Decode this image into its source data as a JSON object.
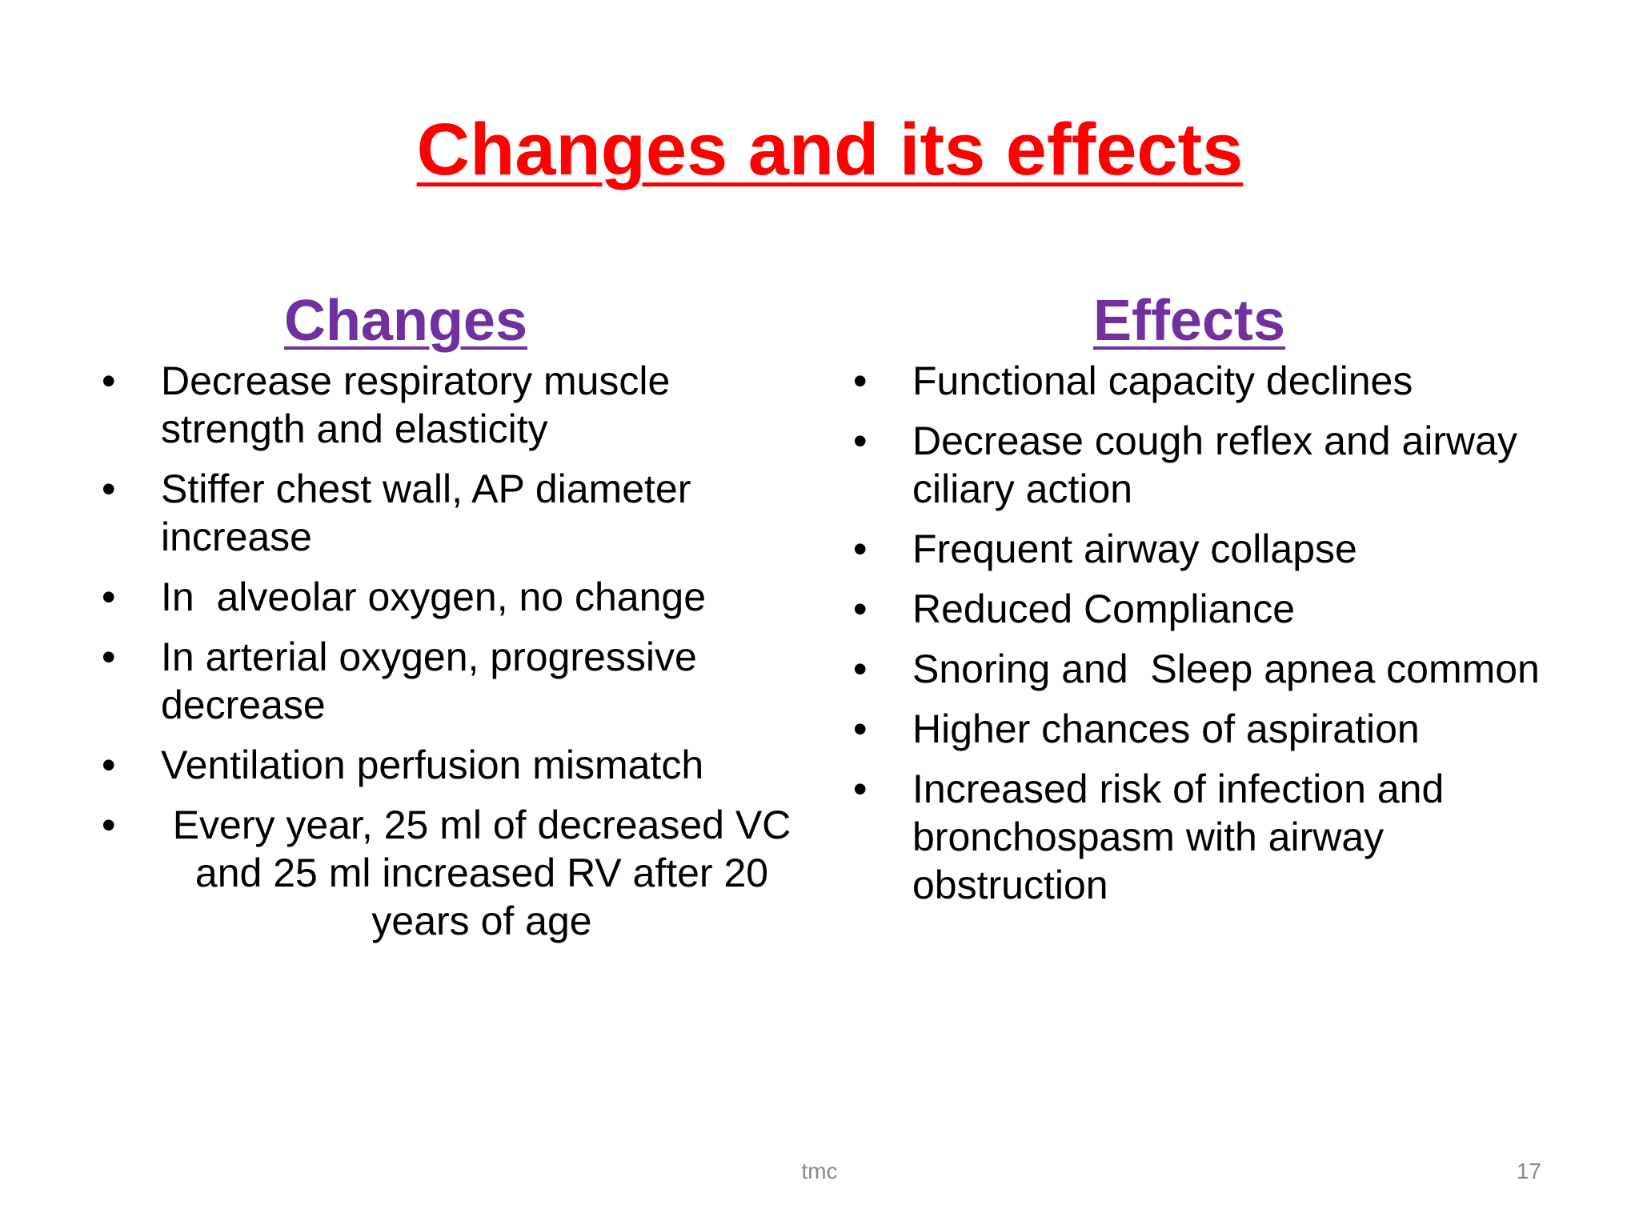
{
  "title": "Changes and its effects",
  "columns": [
    {
      "heading": "Changes",
      "items": [
        "Decrease respiratory muscle strength and elasticity",
        "Stiffer chest wall, AP diameter increase",
        "In  alveolar oxygen, no change",
        "In arterial oxygen, progressive decrease",
        "Ventilation perfusion mismatch",
        "Every year, 25 ml of decreased VC and 25 ml increased RV after 20 years of age"
      ]
    },
    {
      "heading": "Effects",
      "items": [
        "Functional capacity declines",
        "Decrease cough reflex and airway ciliary action",
        "Frequent airway collapse",
        "Reduced Compliance",
        "Snoring and  Sleep apnea common",
        "Higher chances of aspiration",
        "Increased risk of infection and bronchospasm with airway obstruction"
      ]
    }
  ],
  "footer": {
    "center": "tmc",
    "page_number": 17
  }
}
